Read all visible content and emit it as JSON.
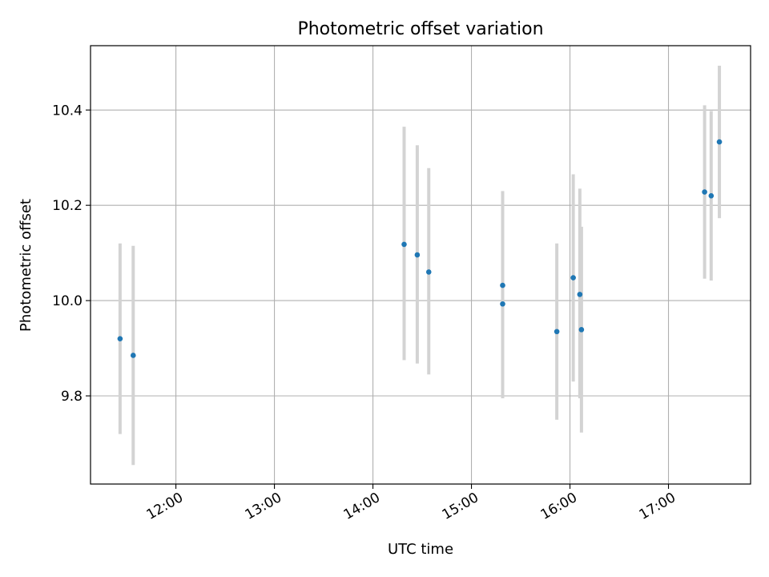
{
  "chart_data": {
    "type": "scatter",
    "title": "Photometric offset variation",
    "xlabel": "UTC time",
    "ylabel": "Photometric offset",
    "xlim": [
      "11:08",
      "17:50"
    ],
    "ylim": [
      9.615,
      10.535
    ],
    "x_ticks": [
      "12:00",
      "13:00",
      "14:00",
      "15:00",
      "16:00",
      "17:00"
    ],
    "y_ticks": [
      "9.8",
      "10.0",
      "10.2",
      "10.4"
    ],
    "grid": true,
    "legend": "none",
    "marker_color": "#1f77b4",
    "errorbar_color": "#d3d3d3",
    "points": [
      {
        "x": "11:26",
        "y": 9.92,
        "err_low": 9.72,
        "err_high": 10.12
      },
      {
        "x": "11:34",
        "y": 9.885,
        "err_low": 9.655,
        "err_high": 10.115
      },
      {
        "x": "14:19",
        "y": 10.118,
        "err_low": 9.875,
        "err_high": 10.365
      },
      {
        "x": "14:27",
        "y": 10.096,
        "err_low": 9.868,
        "err_high": 10.326
      },
      {
        "x": "14:34",
        "y": 10.06,
        "err_low": 9.845,
        "err_high": 10.278
      },
      {
        "x": "15:19",
        "y": 10.032,
        "err_low": 9.835,
        "err_high": 10.23
      },
      {
        "x": "15:19",
        "y": 9.993,
        "err_low": 9.795,
        "err_high": 10.19
      },
      {
        "x": "15:52",
        "y": 9.935,
        "err_low": 9.75,
        "err_high": 10.12
      },
      {
        "x": "16:02",
        "y": 10.048,
        "err_low": 9.83,
        "err_high": 10.265
      },
      {
        "x": "16:06",
        "y": 10.013,
        "err_low": 9.795,
        "err_high": 10.235
      },
      {
        "x": "16:07",
        "y": 9.939,
        "err_low": 9.723,
        "err_high": 10.155
      },
      {
        "x": "17:22",
        "y": 10.228,
        "err_low": 10.046,
        "err_high": 10.41
      },
      {
        "x": "17:26",
        "y": 10.22,
        "err_low": 10.042,
        "err_high": 10.398
      },
      {
        "x": "17:31",
        "y": 10.333,
        "err_low": 10.173,
        "err_high": 10.493
      }
    ]
  }
}
